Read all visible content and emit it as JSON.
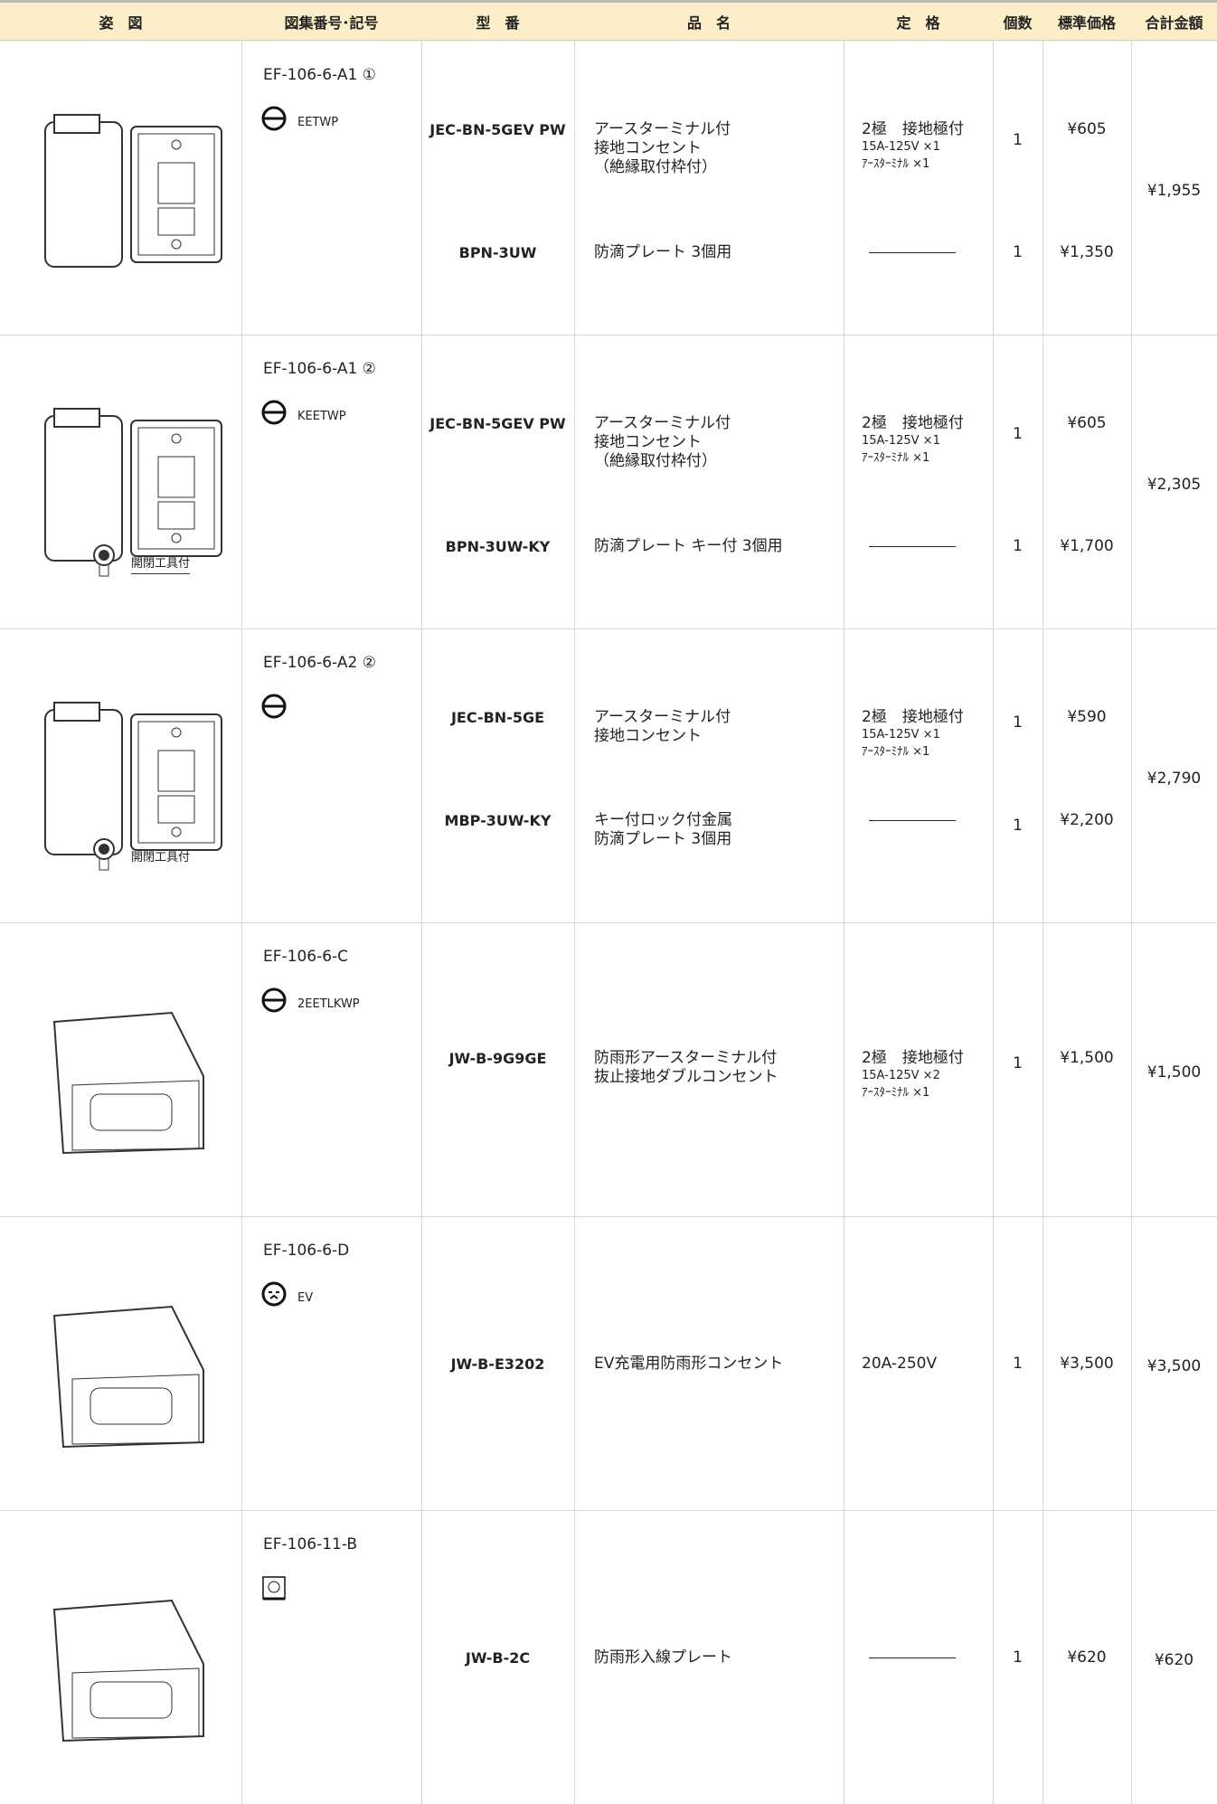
{
  "header": [
    "姿　図",
    "図集番号･記号",
    "型　番",
    "品　名",
    "定　格",
    "個数",
    "標準価格",
    "合計金額"
  ],
  "rows": [
    {
      "code": "EF-106-6-A1 ①",
      "symbol": "EETWP",
      "items": [
        {
          "model": "JEC-BN-5GEV PW",
          "name": [
            "アースターミナル付",
            "接地コンセント",
            "（絶縁取付枠付）"
          ],
          "rating": [
            "2極　接地極付",
            "15A-125V ×1",
            "ｱｰｽﾀｰﾐﾅﾙ ×1"
          ],
          "qty": "1",
          "price": "¥605"
        },
        {
          "model": "BPN-3UW",
          "name": [
            "防滴プレート 3個用"
          ],
          "rating": [],
          "qty": "1",
          "price": "¥1,350"
        }
      ],
      "total": "¥1,955"
    },
    {
      "code": "EF-106-6-A1 ②",
      "symbol": "KEETWP",
      "note": "開閉工具付",
      "items": [
        {
          "model": "JEC-BN-5GEV PW",
          "name": [
            "アースターミナル付",
            "接地コンセント",
            "（絶縁取付枠付）"
          ],
          "rating": [
            "2極　接地極付",
            "15A-125V ×1",
            "ｱｰｽﾀｰﾐﾅﾙ ×1"
          ],
          "qty": "1",
          "price": "¥605"
        },
        {
          "model": "BPN-3UW-KY",
          "name": [
            "防滴プレート キー付 3個用"
          ],
          "rating": [],
          "qty": "1",
          "price": "¥1,700"
        }
      ],
      "total": "¥2,305"
    },
    {
      "code": "EF-106-6-A2 ②",
      "note": "開閉工具付",
      "items": [
        {
          "model": "JEC-BN-5GE",
          "name": [
            "アースターミナル付",
            "接地コンセント"
          ],
          "rating": [
            "2極　接地極付",
            "15A-125V ×1",
            "ｱｰｽﾀｰﾐﾅﾙ ×1"
          ],
          "qty": "1",
          "price": "¥590"
        },
        {
          "model": "MBP-3UW-KY",
          "name": [
            "キー付ロック付金属",
            "防滴プレート 3個用"
          ],
          "rating": [],
          "qty": "1",
          "price": "¥2,200"
        }
      ],
      "total": "¥2,790"
    },
    {
      "code": "EF-106-6-C",
      "symbol": "2EETLKWP",
      "items": [
        {
          "model": "JW-B-9G9GE",
          "name": [
            "防雨形アースターミナル付",
            "抜止接地ダブルコンセント"
          ],
          "rating": [
            "2極　接地極付",
            "15A-125V ×2",
            "ｱｰｽﾀｰﾐﾅﾙ ×1"
          ],
          "qty": "1",
          "price": "¥1,500"
        }
      ],
      "total": "¥1,500"
    },
    {
      "code": "EF-106-6-D",
      "symbol": "EV",
      "items": [
        {
          "model": "JW-B-E3202",
          "name": [
            "EV充電用防雨形コンセント"
          ],
          "rating": [
            "20A-250V"
          ],
          "qty": "1",
          "price": "¥3,500"
        }
      ],
      "total": "¥3,500"
    },
    {
      "code": "EF-106-11-B",
      "items": [
        {
          "model": "JW-B-2C",
          "name": [
            "防雨形入線プレート"
          ],
          "rating": [],
          "qty": "1",
          "price": "¥620"
        }
      ],
      "total": "¥620"
    }
  ]
}
